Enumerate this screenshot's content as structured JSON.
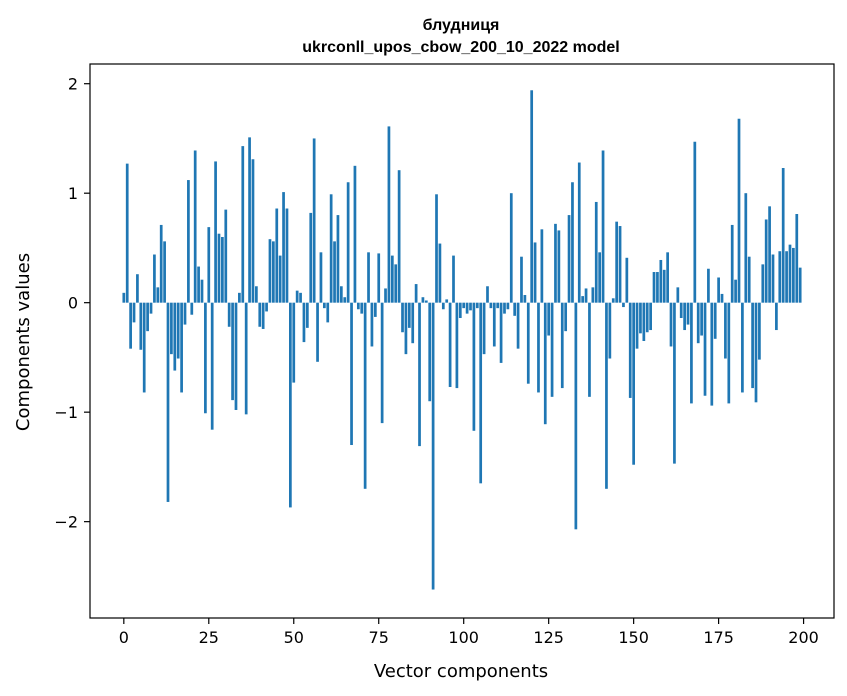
{
  "chart_data": {
    "type": "bar",
    "title": "блудниця",
    "subtitle": "ukrconll_upos_cbow_200_10_2022 model",
    "xlabel": "Vector components",
    "ylabel": "Components values",
    "xlim": [
      -9.95,
      208.95
    ],
    "ylim": [
      -2.88,
      2.18
    ],
    "xticks": [
      0,
      25,
      50,
      75,
      100,
      125,
      150,
      175,
      200
    ],
    "xtick_labels": [
      "0",
      "25",
      "50",
      "75",
      "100",
      "125",
      "150",
      "175",
      "200"
    ],
    "yticks": [
      -2,
      -1,
      0,
      1,
      2
    ],
    "ytick_labels": [
      "−2",
      "−1",
      "0",
      "1",
      "2"
    ],
    "bar_color": "#1f77b4",
    "x": [
      0,
      1,
      2,
      3,
      4,
      5,
      6,
      7,
      8,
      9,
      10,
      11,
      12,
      13,
      14,
      15,
      16,
      17,
      18,
      19,
      20,
      21,
      22,
      23,
      24,
      25,
      26,
      27,
      28,
      29,
      30,
      31,
      32,
      33,
      34,
      35,
      36,
      37,
      38,
      39,
      40,
      41,
      42,
      43,
      44,
      45,
      46,
      47,
      48,
      49,
      50,
      51,
      52,
      53,
      54,
      55,
      56,
      57,
      58,
      59,
      60,
      61,
      62,
      63,
      64,
      65,
      66,
      67,
      68,
      69,
      70,
      71,
      72,
      73,
      74,
      75,
      76,
      77,
      78,
      79,
      80,
      81,
      82,
      83,
      84,
      85,
      86,
      87,
      88,
      89,
      90,
      91,
      92,
      93,
      94,
      95,
      96,
      97,
      98,
      99,
      100,
      101,
      102,
      103,
      104,
      105,
      106,
      107,
      108,
      109,
      110,
      111,
      112,
      113,
      114,
      115,
      116,
      117,
      118,
      119,
      120,
      121,
      122,
      123,
      124,
      125,
      126,
      127,
      128,
      129,
      130,
      131,
      132,
      133,
      134,
      135,
      136,
      137,
      138,
      139,
      140,
      141,
      142,
      143,
      144,
      145,
      146,
      147,
      148,
      149,
      150,
      151,
      152,
      153,
      154,
      155,
      156,
      157,
      158,
      159,
      160,
      161,
      162,
      163,
      164,
      165,
      166,
      167,
      168,
      169,
      170,
      171,
      172,
      173,
      174,
      175,
      176,
      177,
      178,
      179,
      180,
      181,
      182,
      183,
      184,
      185,
      186,
      187,
      188,
      189,
      190,
      191,
      192,
      193,
      194,
      195,
      196,
      197,
      198,
      199
    ],
    "values": [
      0.09,
      1.27,
      -0.42,
      -0.18,
      0.26,
      -0.43,
      -0.82,
      -0.26,
      -0.1,
      0.44,
      0.14,
      0.71,
      0.56,
      -1.82,
      -0.47,
      -0.62,
      -0.51,
      -0.82,
      -0.2,
      1.12,
      -0.11,
      1.39,
      0.33,
      0.21,
      -1.01,
      0.69,
      -1.16,
      1.29,
      0.63,
      0.6,
      0.85,
      -0.22,
      -0.89,
      -0.98,
      0.09,
      1.43,
      -1.02,
      1.51,
      1.31,
      0.15,
      -0.22,
      -0.24,
      -0.08,
      0.58,
      0.56,
      0.86,
      0.43,
      1.01,
      0.86,
      -1.87,
      -0.73,
      0.11,
      0.09,
      -0.36,
      -0.23,
      0.82,
      1.5,
      -0.54,
      0.46,
      -0.05,
      -0.18,
      0.99,
      0.56,
      0.8,
      0.15,
      0.05,
      1.1,
      -1.3,
      1.25,
      -0.06,
      -0.1,
      -1.7,
      0.46,
      -0.4,
      -0.13,
      0.45,
      -1.1,
      0.13,
      1.61,
      0.43,
      0.35,
      1.21,
      -0.27,
      -0.47,
      -0.23,
      -0.37,
      0.17,
      -1.31,
      0.05,
      0.02,
      -0.9,
      -2.62,
      0.99,
      0.54,
      -0.06,
      0.03,
      -0.77,
      0.43,
      -0.78,
      -0.14,
      -0.05,
      -0.1,
      -0.07,
      -1.17,
      -0.05,
      -1.65,
      -0.47,
      0.15,
      -0.05,
      -0.4,
      -0.05,
      -0.55,
      -0.1,
      -0.06,
      1.0,
      -0.12,
      -0.42,
      0.42,
      0.07,
      -0.74,
      1.94,
      0.55,
      -0.82,
      0.67,
      -1.11,
      -0.3,
      -0.86,
      0.72,
      0.66,
      -0.78,
      -0.26,
      0.8,
      1.1,
      -2.07,
      1.28,
      0.06,
      0.13,
      -0.86,
      0.14,
      0.92,
      0.46,
      1.39,
      -1.7,
      -0.51,
      0.04,
      0.74,
      0.7,
      -0.04,
      0.41,
      -0.87,
      -1.48,
      -0.42,
      -0.28,
      -0.35,
      -0.27,
      -0.25,
      0.28,
      0.28,
      0.39,
      0.3,
      0.46,
      -0.4,
      -1.47,
      0.14,
      -0.14,
      -0.25,
      -0.2,
      -0.92,
      1.47,
      -0.37,
      -0.3,
      -0.85,
      0.31,
      -0.94,
      -0.33,
      0.23,
      0.08,
      -0.51,
      -0.92,
      0.71,
      0.21,
      1.68,
      -0.82,
      1.0,
      0.42,
      -0.78,
      -0.91,
      -0.52,
      0.35,
      0.76,
      0.88,
      0.44,
      -0.25,
      0.47,
      1.23,
      0.47,
      0.53,
      0.5,
      0.81,
      0.32
    ]
  }
}
